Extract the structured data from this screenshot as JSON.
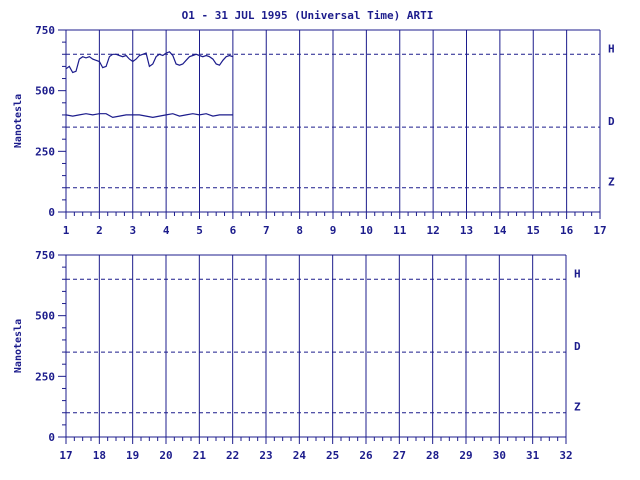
{
  "title": "O1 - 31 JUL 1995 (Universal Time) ARTI",
  "colors": {
    "axis": "#1c1c8c",
    "trace": "#1c1c8c",
    "background": "#ffffff"
  },
  "chart_data": [
    {
      "type": "line",
      "title": "O1 - 31 JUL 1995 (Universal Time) ARTI",
      "ylabel": "Nanotesla",
      "xlabel": "",
      "xlim": [
        1,
        17
      ],
      "ylim": [
        0,
        750
      ],
      "x_ticks": [
        "1",
        "2",
        "3",
        "4",
        "5",
        "6",
        "7",
        "8",
        "9",
        "10",
        "11",
        "12",
        "13",
        "14",
        "15",
        "16",
        "17"
      ],
      "y_ticks": [
        "0",
        "250",
        "500",
        "750"
      ],
      "baselines": [
        {
          "name": "H",
          "value": 650
        },
        {
          "name": "D",
          "value": 350
        },
        {
          "name": "Z",
          "value": 100
        }
      ],
      "grid": true,
      "series": [
        {
          "name": "H",
          "x": [
            1.0,
            1.1,
            1.2,
            1.3,
            1.4,
            1.5,
            1.6,
            1.7,
            1.8,
            1.9,
            2.0,
            2.1,
            2.2,
            2.3,
            2.4,
            2.5,
            2.6,
            2.7,
            2.8,
            2.9,
            3.0,
            3.1,
            3.2,
            3.3,
            3.4,
            3.5,
            3.6,
            3.7,
            3.8,
            3.9,
            4.0,
            4.1,
            4.2,
            4.3,
            4.4,
            4.5,
            4.6,
            4.7,
            4.8,
            4.9,
            5.0,
            5.1,
            5.2,
            5.3,
            5.4,
            5.5,
            5.6,
            5.7,
            5.8,
            5.9,
            6.0
          ],
          "values": [
            590,
            600,
            575,
            580,
            630,
            640,
            635,
            640,
            630,
            625,
            620,
            595,
            600,
            640,
            650,
            650,
            645,
            640,
            645,
            630,
            620,
            630,
            645,
            650,
            655,
            600,
            610,
            640,
            650,
            645,
            655,
            660,
            645,
            610,
            605,
            610,
            625,
            640,
            645,
            650,
            645,
            640,
            645,
            640,
            630,
            610,
            605,
            625,
            640,
            645,
            640
          ]
        },
        {
          "name": "D",
          "x": [
            1.0,
            1.2,
            1.4,
            1.6,
            1.8,
            2.0,
            2.2,
            2.4,
            2.6,
            2.8,
            3.0,
            3.2,
            3.4,
            3.6,
            3.8,
            4.0,
            4.2,
            4.4,
            4.6,
            4.8,
            5.0,
            5.2,
            5.4,
            5.6,
            5.8,
            6.0
          ],
          "values": [
            400,
            395,
            400,
            405,
            400,
            405,
            405,
            390,
            395,
            400,
            400,
            400,
            395,
            390,
            395,
            400,
            405,
            395,
            400,
            405,
            400,
            405,
            395,
            400,
            400,
            400
          ]
        },
        {
          "name": "Z",
          "x": [],
          "values": []
        }
      ]
    },
    {
      "type": "line",
      "title": "",
      "ylabel": "Nanotesla",
      "xlabel": "",
      "xlim": [
        17,
        32
      ],
      "ylim": [
        0,
        750
      ],
      "x_ticks": [
        "17",
        "18",
        "19",
        "20",
        "21",
        "22",
        "23",
        "24",
        "25",
        "26",
        "27",
        "28",
        "29",
        "30",
        "31",
        "32"
      ],
      "y_ticks": [
        "0",
        "250",
        "500",
        "750"
      ],
      "baselines": [
        {
          "name": "H",
          "value": 650
        },
        {
          "name": "D",
          "value": 350
        },
        {
          "name": "Z",
          "value": 100
        }
      ],
      "grid": true,
      "series": [
        {
          "name": "H",
          "x": [],
          "values": []
        },
        {
          "name": "D",
          "x": [],
          "values": []
        },
        {
          "name": "Z",
          "x": [],
          "values": []
        }
      ]
    }
  ]
}
